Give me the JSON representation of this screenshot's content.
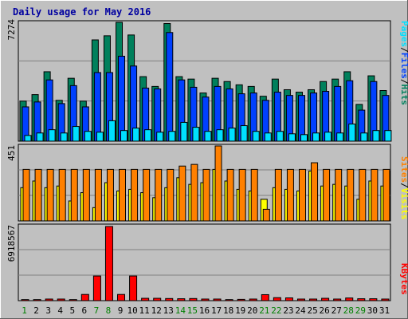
{
  "title": "Daily usage for May 2016",
  "colors": {
    "hits": "#00805c",
    "files": "#0040ff",
    "pages": "#00e0ff",
    "visits": "#ffff00",
    "sites": "#ff8000",
    "kbytes": "#ff0000",
    "title": "#0000a0",
    "weekend_day": "#008000",
    "weekday": "#000000",
    "background": "#c0c0c0",
    "plot_background": "#c0c0c0"
  },
  "legend": {
    "top": {
      "pages": "Pages",
      "files": "Files",
      "hits": "Hits",
      "sep": "/"
    },
    "middle": {
      "sites": "Sites",
      "visits": "Visits",
      "sep": "/"
    },
    "bottom": {
      "kbytes": "KBytes"
    }
  },
  "chart_data": [
    {
      "type": "bar",
      "title": "Daily usage for May 2016",
      "ymax_label": "7274",
      "ylim": [
        0,
        7274
      ],
      "categories": [
        "1",
        "2",
        "3",
        "4",
        "5",
        "6",
        "7",
        "8",
        "9",
        "10",
        "11",
        "12",
        "13",
        "14",
        "15",
        "16",
        "17",
        "18",
        "19",
        "20",
        "21",
        "22",
        "23",
        "24",
        "25",
        "26",
        "27",
        "28",
        "29",
        "30",
        "31"
      ],
      "weekend_days": [
        "1",
        "7",
        "8",
        "14",
        "15",
        "21",
        "22",
        "28",
        "29"
      ],
      "series": [
        {
          "name": "Hits",
          "values": [
            2450,
            2850,
            4250,
            2500,
            3850,
            2450,
            6200,
            6450,
            7274,
            6500,
            3950,
            3350,
            7200,
            3950,
            3800,
            2950,
            3850,
            3650,
            3450,
            3350,
            2750,
            3800,
            3150,
            3000,
            3150,
            3650,
            3800,
            4250,
            2250,
            4000,
            3100
          ]
        },
        {
          "name": "Files",
          "values": [
            2100,
            2400,
            3750,
            2300,
            3400,
            2100,
            4200,
            4200,
            5200,
            4600,
            3250,
            3200,
            6650,
            3750,
            3300,
            2700,
            3350,
            3200,
            2900,
            2950,
            2500,
            3000,
            2800,
            2800,
            2950,
            3050,
            3350,
            3700,
            1900,
            3650,
            2800
          ]
        },
        {
          "name": "Pages",
          "values": [
            350,
            500,
            700,
            500,
            900,
            600,
            550,
            1250,
            650,
            800,
            700,
            550,
            600,
            1150,
            850,
            600,
            700,
            800,
            950,
            600,
            500,
            600,
            450,
            400,
            500,
            550,
            500,
            1050,
            500,
            650,
            650
          ]
        }
      ]
    },
    {
      "type": "bar",
      "ymax_label": "451",
      "ylim": [
        0,
        451
      ],
      "categories": [
        "1",
        "2",
        "3",
        "4",
        "5",
        "6",
        "7",
        "8",
        "9",
        "10",
        "11",
        "12",
        "13",
        "14",
        "15",
        "16",
        "17",
        "18",
        "19",
        "20",
        "21",
        "22",
        "23",
        "24",
        "25",
        "26",
        "27",
        "28",
        "29",
        "30",
        "31"
      ],
      "series": [
        {
          "name": "Visits",
          "values": [
            200,
            240,
            200,
            210,
            120,
            170,
            80,
            230,
            180,
            190,
            170,
            140,
            200,
            260,
            220,
            230,
            310,
            240,
            190,
            180,
            130,
            200,
            190,
            180,
            300,
            210,
            220,
            210,
            130,
            240,
            210
          ]
        },
        {
          "name": "Sites",
          "values": [
            310,
            310,
            310,
            310,
            310,
            310,
            310,
            310,
            310,
            310,
            310,
            310,
            310,
            330,
            340,
            310,
            451,
            310,
            310,
            310,
            70,
            310,
            310,
            310,
            350,
            310,
            310,
            310,
            310,
            310,
            310
          ]
        }
      ]
    },
    {
      "type": "bar",
      "ymax_label": "6918567",
      "ylim": [
        0,
        6918567
      ],
      "categories": [
        "1",
        "2",
        "3",
        "4",
        "5",
        "6",
        "7",
        "8",
        "9",
        "10",
        "11",
        "12",
        "13",
        "14",
        "15",
        "16",
        "17",
        "18",
        "19",
        "20",
        "21",
        "22",
        "23",
        "24",
        "25",
        "26",
        "27",
        "28",
        "29",
        "30",
        "31"
      ],
      "series": [
        {
          "name": "KBytes",
          "values": [
            100000,
            100000,
            150000,
            150000,
            100000,
            580000,
            2300000,
            6918567,
            580000,
            2300000,
            220000,
            220000,
            200000,
            180000,
            200000,
            150000,
            150000,
            100000,
            120000,
            150000,
            560000,
            280000,
            260000,
            150000,
            150000,
            220000,
            150000,
            250000,
            180000,
            180000,
            150000
          ]
        }
      ]
    }
  ]
}
